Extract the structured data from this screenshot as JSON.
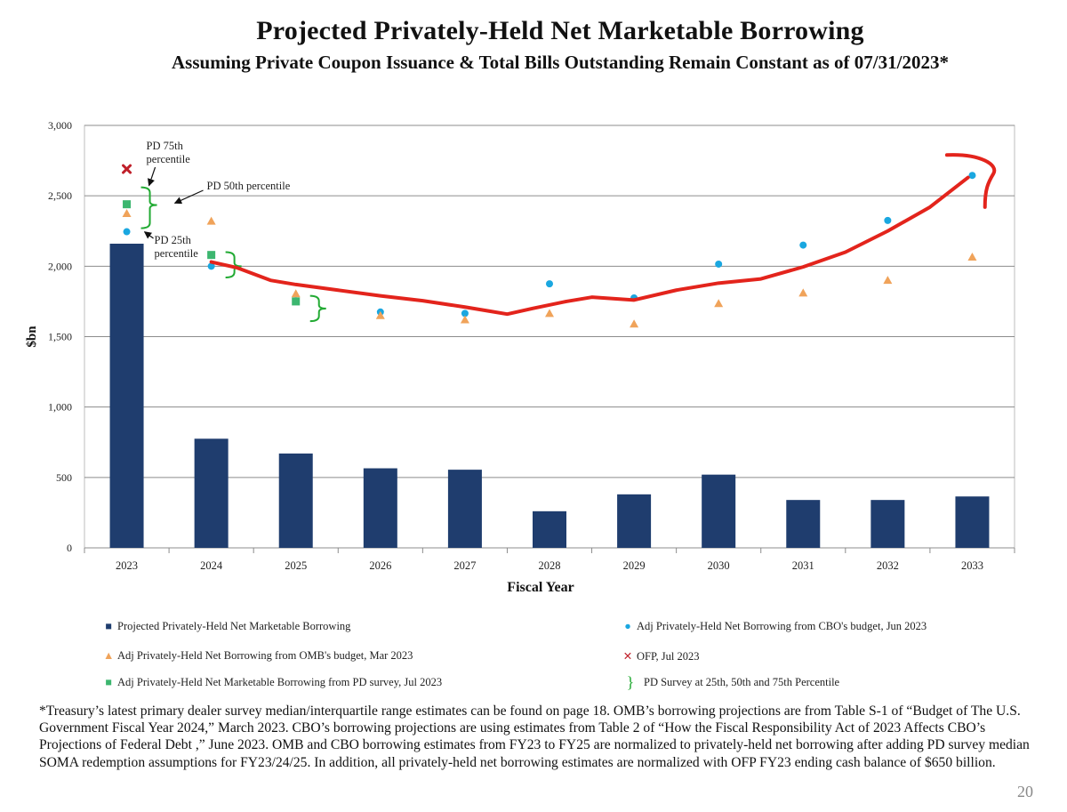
{
  "chart_data": {
    "type": "bar",
    "title": "Projected Privately-Held Net Marketable Borrowing",
    "subtitle": "Assuming Private Coupon Issuance & Total Bills Outstanding Remain Constant as of 07/31/2023*",
    "xlabel": "Fiscal Year",
    "ylabel": "$bn",
    "ylim": [
      0,
      3000
    ],
    "yticks": [
      0,
      500,
      1000,
      1500,
      2000,
      2500,
      3000
    ],
    "ytick_labels": [
      "0",
      "500",
      "1,000",
      "1,500",
      "2,000",
      "2,500",
      "3,000"
    ],
    "categories": [
      "2023",
      "2024",
      "2025",
      "2026",
      "2027",
      "2028",
      "2029",
      "2030",
      "2031",
      "2032",
      "2033"
    ],
    "grid": true,
    "series": [
      {
        "name": "Projected Privately-Held Net Marketable Borrowing",
        "type": "bar",
        "color": "#1f3d6e",
        "values": [
          2160,
          775,
          670,
          565,
          555,
          260,
          380,
          520,
          340,
          340,
          365
        ]
      },
      {
        "name": "Adj Privately-Held Net Borrowing from CBO's budget, Jun 2023",
        "type": "scatter-circle",
        "color": "#1aa7e0",
        "values": [
          2245,
          2000,
          1755,
          1675,
          1665,
          1875,
          1775,
          2015,
          2150,
          2325,
          2645
        ]
      },
      {
        "name": "Adj Privately-Held Net Borrowing from OMB's budget, Mar 2023",
        "type": "scatter-triangle",
        "color": "#f0a35a",
        "values": [
          2375,
          2320,
          1805,
          1650,
          1620,
          1665,
          1590,
          1735,
          1810,
          1900,
          2065
        ]
      },
      {
        "name": "OFP, Jul 2023",
        "type": "scatter-x",
        "color": "#c0202a",
        "values": [
          2690,
          null,
          null,
          null,
          null,
          null,
          null,
          null,
          null,
          null,
          null
        ]
      },
      {
        "name": "Adj Privately-Held Net Marketable Borrowing from PD survey, Jul 2023",
        "type": "scatter-square",
        "color": "#3cb66f",
        "values": [
          2440,
          2080,
          1750,
          null,
          null,
          null,
          null,
          null,
          null,
          null,
          null
        ]
      }
    ],
    "pd_percentile_ranges": [
      {
        "category": "2023",
        "p25": 2270,
        "p50": 2435,
        "p75": 2560
      },
      {
        "category": "2024",
        "p25": 1920,
        "p50": 2000,
        "p75": 2100
      },
      {
        "category": "2025",
        "p25": 1610,
        "p50": 1700,
        "p75": 1790
      }
    ],
    "annotations": [
      {
        "text": "PD 75th percentile",
        "category": "2023",
        "value": 2560
      },
      {
        "text": "PD 50th percentile",
        "category": "2023",
        "value": 2435
      },
      {
        "text": "PD 25th percentile",
        "category": "2023",
        "value": 2270
      }
    ],
    "hand_drawn_trend_line": {
      "color": "#e3241c",
      "points": [
        [
          2024,
          2030
        ],
        [
          2024.3,
          1990
        ],
        [
          2024.7,
          1900
        ],
        [
          2025,
          1870
        ],
        [
          2025.5,
          1830
        ],
        [
          2026,
          1790
        ],
        [
          2026.5,
          1755
        ],
        [
          2027,
          1710
        ],
        [
          2027.3,
          1680
        ],
        [
          2027.5,
          1660
        ],
        [
          2027.8,
          1700
        ],
        [
          2028.2,
          1750
        ],
        [
          2028.5,
          1780
        ],
        [
          2029,
          1760
        ],
        [
          2029.5,
          1830
        ],
        [
          2030,
          1880
        ],
        [
          2030.5,
          1910
        ],
        [
          2031,
          1995
        ],
        [
          2031.5,
          2100
        ],
        [
          2032,
          2250
        ],
        [
          2032.5,
          2420
        ],
        [
          2032.95,
          2630
        ]
      ],
      "hook_points": [
        [
          2032.7,
          2790
        ],
        [
          2033.1,
          2800
        ],
        [
          2033.25,
          2720
        ],
        [
          2033.15,
          2420
        ]
      ]
    }
  },
  "legend": [
    {
      "symbol": "■",
      "color": "#1f3d6e",
      "label": "Projected Privately-Held Net Marketable Borrowing"
    },
    {
      "symbol": "●",
      "color": "#1aa7e0",
      "label": "Adj Privately-Held Net Borrowing from CBO's budget, Jun 2023"
    },
    {
      "symbol": "▲",
      "color": "#f0a35a",
      "label": "Adj Privately-Held Net Borrowing from OMB's budget, Mar 2023"
    },
    {
      "symbol": "✕",
      "color": "#c0202a",
      "label": "OFP, Jul 2023"
    },
    {
      "symbol": "■",
      "color": "#3cb66f",
      "label": "Adj Privately-Held Net Marketable Borrowing from PD survey, Jul 2023"
    },
    {
      "symbol": "}",
      "color": "#22aa33",
      "label": "PD Survey at 25th, 50th and 75th Percentile"
    }
  ],
  "footnote": "*Treasury’s latest primary dealer survey median/interquartile range estimates can be found on page 18. OMB’s borrowing projections are from Table S-1 of “Budget of The U.S. Government Fiscal Year 2024,” March 2023. CBO’s borrowing projections are using estimates from Table 2 of “How the Fiscal Responsibility Act of 2023 Affects CBO’s Projections of Federal Debt ,” June 2023. OMB and CBO borrowing estimates from FY23 to FY25 are normalized to privately-held net borrowing after adding PD survey median SOMA redemption assumptions for FY23/24/25. In addition, all privately-held net borrowing estimates are normalized with OFP FY23 ending cash balance of $650 billion.",
  "page_number": "20"
}
